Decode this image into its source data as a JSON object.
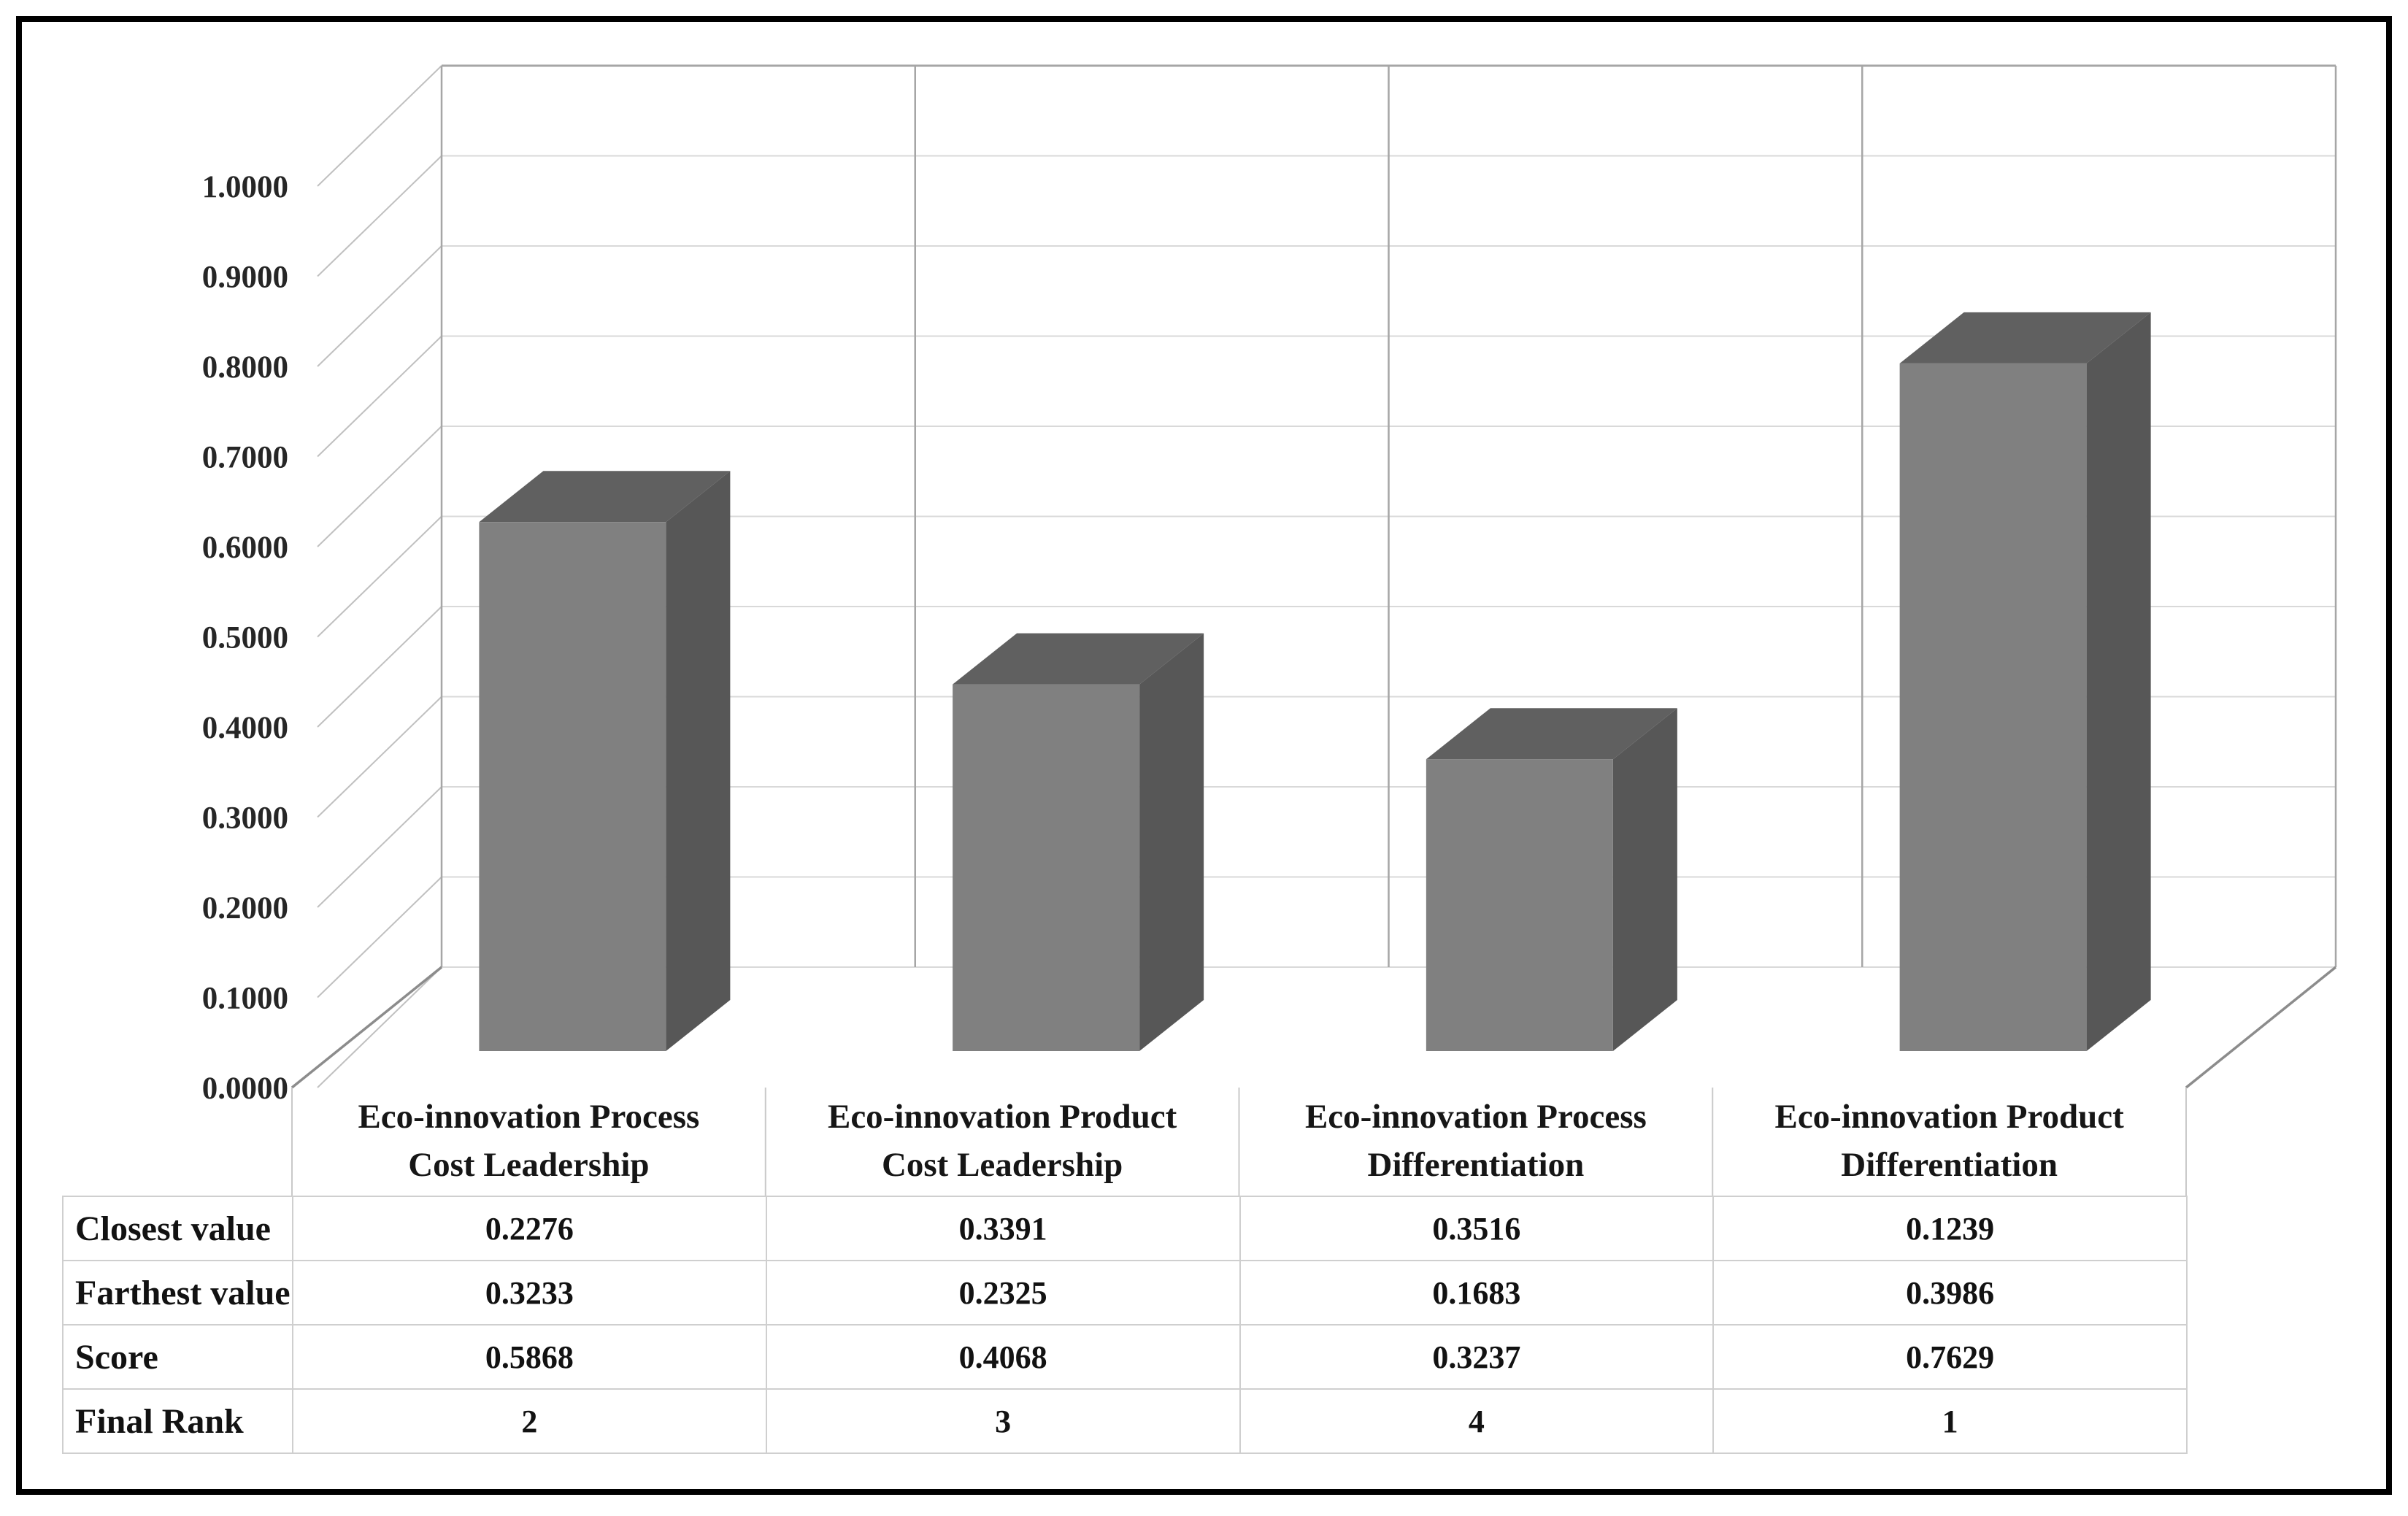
{
  "figure": {
    "kind": "3d-column-chart-with-data-table",
    "background": "#ffffff",
    "border_color": "#000000"
  },
  "chart_data": {
    "type": "bar",
    "projection": "3d",
    "title": "",
    "xlabel": "",
    "ylabel": "",
    "categories": [
      "Eco-innovation Process\nCost Leadership",
      "Eco-innovation Product\nCost Leadership",
      "Eco-innovation Process\nDifferentiation",
      "Eco-innovation Product\nDifferentiation"
    ],
    "series": [
      {
        "name": "Score",
        "values": [
          0.5868,
          0.4068,
          0.3237,
          0.7629
        ]
      }
    ],
    "ylim": [
      0,
      1
    ],
    "ytick_step": 0.1,
    "ytick_decimals": 4,
    "ytick_labels": [
      "0.0000",
      "0.1000",
      "0.2000",
      "0.3000",
      "0.4000",
      "0.5000",
      "0.6000",
      "0.7000",
      "0.8000",
      "0.9000",
      "1.0000"
    ],
    "grid": true,
    "legend_position": "none",
    "colors": {
      "bar_front": "#808080",
      "bar_top": "#606060",
      "bar_side": "#575757",
      "gridline": "#d9d9d9",
      "wall_edge": "#a6a6a6",
      "wall_separator": "#a6a6a6",
      "axis_tick": "#c0c0c0",
      "floor_edge": "#8c8c8c",
      "label_text": "#262626"
    }
  },
  "table": {
    "rows": [
      {
        "label": "Closest value",
        "values": [
          "0.2276",
          "0.3391",
          "0.3516",
          "0.1239"
        ]
      },
      {
        "label": "Farthest value",
        "values": [
          "0.3233",
          "0.2325",
          "0.1683",
          "0.3986"
        ]
      },
      {
        "label": "Score",
        "values": [
          "0.5868",
          "0.4068",
          "0.3237",
          "0.7629"
        ]
      },
      {
        "label": "Final Rank",
        "values": [
          "2",
          "3",
          "4",
          "1"
        ]
      }
    ]
  }
}
